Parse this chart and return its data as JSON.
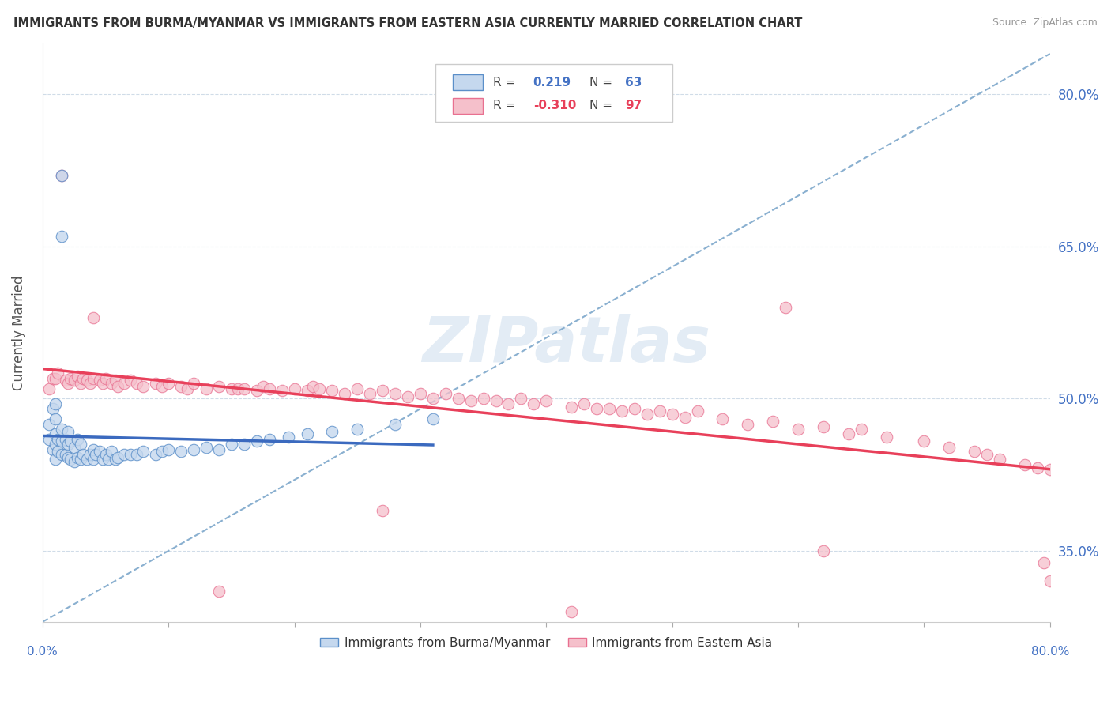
{
  "title": "IMMIGRANTS FROM BURMA/MYANMAR VS IMMIGRANTS FROM EASTERN ASIA CURRENTLY MARRIED CORRELATION CHART",
  "source": "Source: ZipAtlas.com",
  "ylabel": "Currently Married",
  "xlim": [
    0.0,
    0.8
  ],
  "ylim": [
    0.28,
    0.85
  ],
  "yticks": [
    0.35,
    0.5,
    0.65,
    0.8
  ],
  "ytick_labels": [
    "35.0%",
    "50.0%",
    "65.0%",
    "80.0%"
  ],
  "r_blue": 0.219,
  "n_blue": 63,
  "r_pink": -0.31,
  "n_pink": 97,
  "color_blue_fill": "#c5d8ee",
  "color_blue_edge": "#5b8fc9",
  "color_blue_line": "#3b6abf",
  "color_pink_fill": "#f5c0cb",
  "color_pink_edge": "#e87090",
  "color_pink_line": "#e8405a",
  "color_dashed": "#8ab0d0",
  "watermark": "ZIPatlas",
  "legend_label_blue": "Immigrants from Burma/Myanmar",
  "legend_label_pink": "Immigrants from Eastern Asia",
  "blue_x": [
    0.005,
    0.005,
    0.008,
    0.008,
    0.01,
    0.01,
    0.01,
    0.01,
    0.01,
    0.012,
    0.012,
    0.015,
    0.015,
    0.015,
    0.015,
    0.018,
    0.018,
    0.02,
    0.02,
    0.02,
    0.022,
    0.022,
    0.025,
    0.025,
    0.028,
    0.028,
    0.03,
    0.03,
    0.032,
    0.035,
    0.038,
    0.04,
    0.04,
    0.042,
    0.045,
    0.048,
    0.05,
    0.052,
    0.055,
    0.058,
    0.06,
    0.065,
    0.07,
    0.075,
    0.08,
    0.09,
    0.095,
    0.1,
    0.11,
    0.12,
    0.13,
    0.14,
    0.15,
    0.16,
    0.17,
    0.18,
    0.195,
    0.21,
    0.23,
    0.25,
    0.28,
    0.31,
    0.015
  ],
  "blue_y": [
    0.46,
    0.475,
    0.45,
    0.49,
    0.44,
    0.455,
    0.465,
    0.48,
    0.495,
    0.448,
    0.46,
    0.445,
    0.458,
    0.47,
    0.72,
    0.445,
    0.46,
    0.442,
    0.455,
    0.468,
    0.44,
    0.458,
    0.438,
    0.452,
    0.442,
    0.46,
    0.44,
    0.455,
    0.445,
    0.44,
    0.445,
    0.44,
    0.45,
    0.445,
    0.448,
    0.44,
    0.445,
    0.44,
    0.448,
    0.44,
    0.442,
    0.445,
    0.445,
    0.445,
    0.448,
    0.445,
    0.448,
    0.45,
    0.448,
    0.45,
    0.452,
    0.45,
    0.455,
    0.455,
    0.458,
    0.46,
    0.462,
    0.465,
    0.468,
    0.47,
    0.475,
    0.48,
    0.66
  ],
  "pink_x": [
    0.005,
    0.008,
    0.01,
    0.012,
    0.015,
    0.018,
    0.02,
    0.022,
    0.025,
    0.028,
    0.03,
    0.032,
    0.035,
    0.038,
    0.04,
    0.045,
    0.048,
    0.05,
    0.055,
    0.058,
    0.06,
    0.065,
    0.07,
    0.075,
    0.08,
    0.09,
    0.095,
    0.1,
    0.11,
    0.115,
    0.12,
    0.13,
    0.14,
    0.15,
    0.155,
    0.16,
    0.17,
    0.175,
    0.18,
    0.19,
    0.2,
    0.21,
    0.215,
    0.22,
    0.23,
    0.24,
    0.25,
    0.26,
    0.27,
    0.28,
    0.29,
    0.3,
    0.31,
    0.32,
    0.33,
    0.34,
    0.35,
    0.36,
    0.37,
    0.38,
    0.39,
    0.4,
    0.42,
    0.43,
    0.44,
    0.45,
    0.46,
    0.47,
    0.48,
    0.49,
    0.5,
    0.51,
    0.52,
    0.54,
    0.56,
    0.58,
    0.6,
    0.62,
    0.64,
    0.65,
    0.67,
    0.7,
    0.72,
    0.74,
    0.75,
    0.76,
    0.78,
    0.79,
    0.795,
    0.8,
    0.04,
    0.14,
    0.27,
    0.42,
    0.59,
    0.62,
    0.8
  ],
  "pink_y": [
    0.51,
    0.52,
    0.52,
    0.525,
    0.72,
    0.518,
    0.515,
    0.52,
    0.518,
    0.522,
    0.515,
    0.52,
    0.518,
    0.515,
    0.52,
    0.518,
    0.515,
    0.52,
    0.515,
    0.518,
    0.512,
    0.515,
    0.518,
    0.515,
    0.512,
    0.515,
    0.512,
    0.515,
    0.512,
    0.51,
    0.515,
    0.51,
    0.512,
    0.51,
    0.51,
    0.51,
    0.508,
    0.512,
    0.51,
    0.508,
    0.51,
    0.508,
    0.512,
    0.51,
    0.508,
    0.505,
    0.51,
    0.505,
    0.508,
    0.505,
    0.502,
    0.505,
    0.5,
    0.505,
    0.5,
    0.498,
    0.5,
    0.498,
    0.495,
    0.5,
    0.495,
    0.498,
    0.492,
    0.495,
    0.49,
    0.49,
    0.488,
    0.49,
    0.485,
    0.488,
    0.485,
    0.482,
    0.488,
    0.48,
    0.475,
    0.478,
    0.47,
    0.472,
    0.465,
    0.47,
    0.462,
    0.458,
    0.452,
    0.448,
    0.445,
    0.44,
    0.435,
    0.432,
    0.338,
    0.43,
    0.58,
    0.31,
    0.39,
    0.29,
    0.59,
    0.35,
    0.32
  ]
}
